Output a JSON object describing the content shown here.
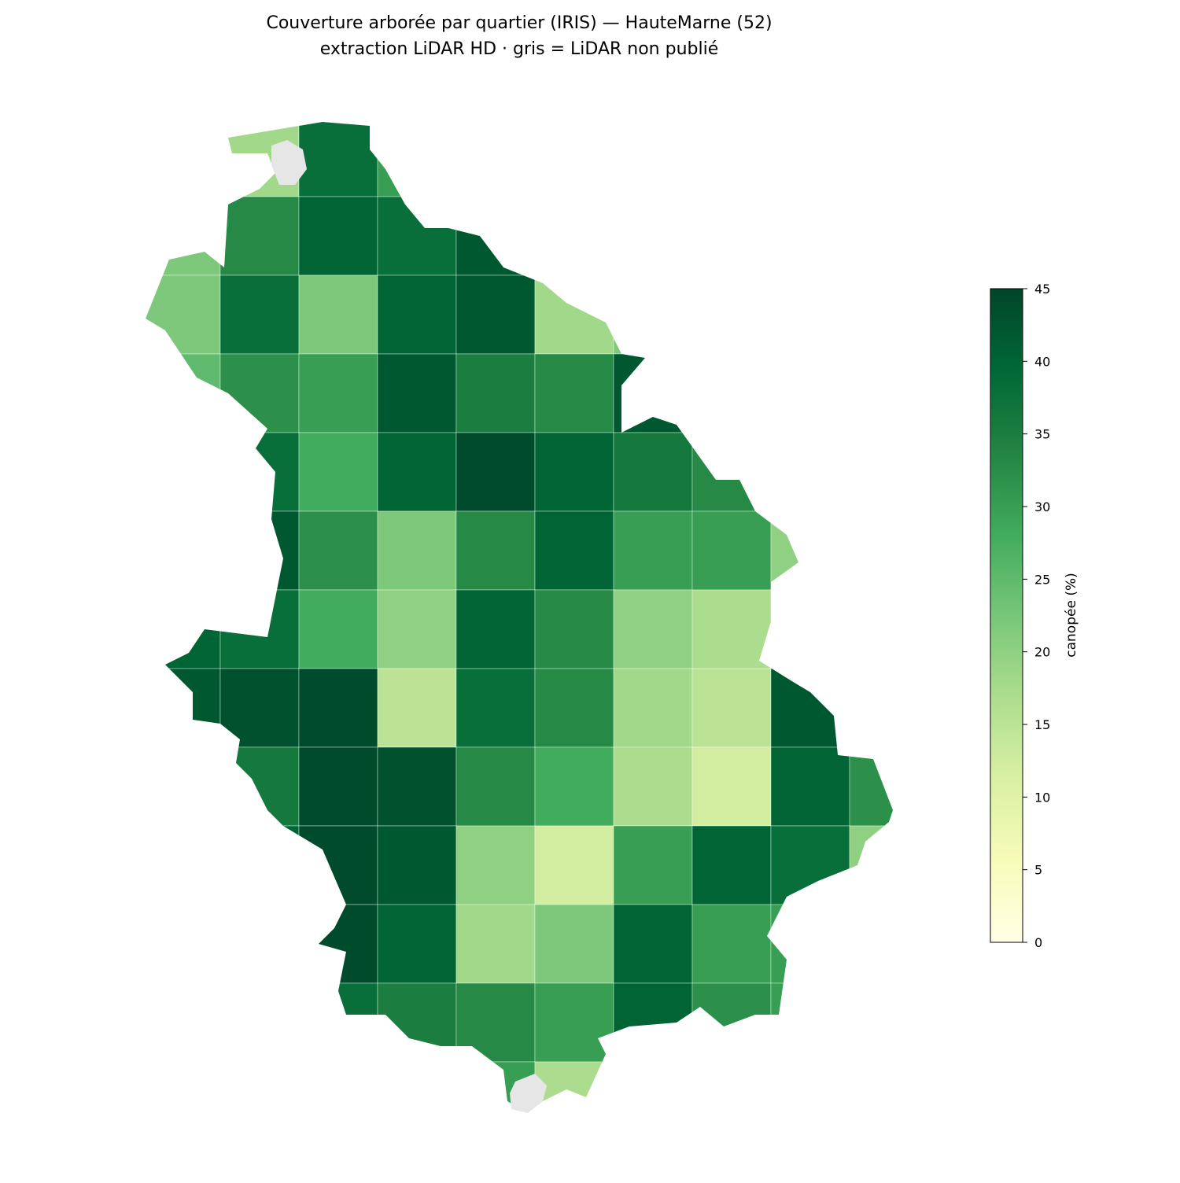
{
  "chart_data": {
    "type": "choropleth",
    "title": "Couverture arborée par quartier (IRIS) — HauteMarne (52)",
    "subtitle": "extraction LiDAR HD · gris = LiDAR non publié",
    "colorbar_label": "canopée (%)",
    "clim": [
      0,
      45
    ],
    "cticks": [
      0,
      5,
      10,
      15,
      20,
      25,
      30,
      35,
      40,
      45
    ],
    "colorscale": [
      "#ffffe5",
      "#f7fcb9",
      "#d9f0a3",
      "#addd8e",
      "#78c679",
      "#41ab5d",
      "#238443",
      "#006837",
      "#004529"
    ],
    "missing_color": "#e6e6e6",
    "values": [
      18,
      38,
      30,
      22,
      33,
      40,
      38,
      42,
      22,
      38,
      22,
      40,
      42,
      18,
      22,
      25,
      32,
      30,
      42,
      35,
      33,
      42,
      38,
      28,
      40,
      44,
      40,
      36,
      33,
      42,
      32,
      22,
      33,
      40,
      30,
      30,
      20,
      40,
      38,
      28,
      20,
      40,
      33,
      20,
      17,
      18,
      42,
      43,
      44,
      15,
      38,
      33,
      18,
      15,
      42,
      36,
      44,
      43,
      33,
      28,
      17,
      12,
      40,
      32,
      40,
      44,
      42,
      20,
      12,
      30,
      40,
      38,
      20,
      44,
      40,
      18,
      22,
      40,
      30,
      30,
      38,
      35,
      33,
      30,
      40,
      32,
      30,
      30,
      17,
      null,
      null
    ]
  }
}
